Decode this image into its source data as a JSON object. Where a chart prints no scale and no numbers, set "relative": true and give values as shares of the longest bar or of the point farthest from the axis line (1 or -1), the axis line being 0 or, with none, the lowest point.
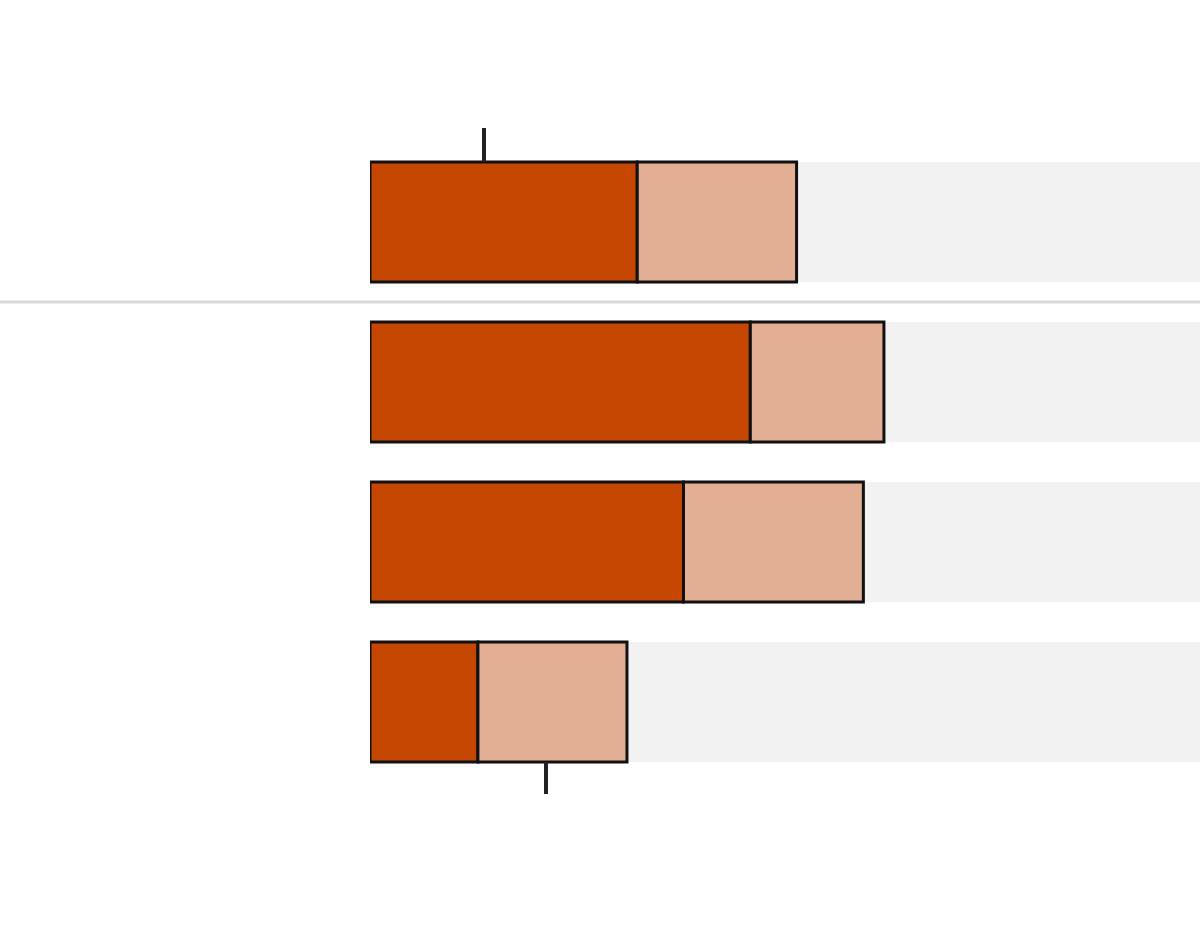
{
  "chart_data": {
    "type": "bar",
    "orientation": "horizontal",
    "stacked": true,
    "relative": true,
    "categories": [
      null,
      null,
      null,
      null
    ],
    "series": [
      {
        "color": "#c44601",
        "values": [
          0.52,
          0.74,
          0.61,
          0.21
        ]
      },
      {
        "color": "#e2af94",
        "values": [
          0.31,
          0.26,
          0.35,
          0.29
        ]
      }
    ]
  }
}
